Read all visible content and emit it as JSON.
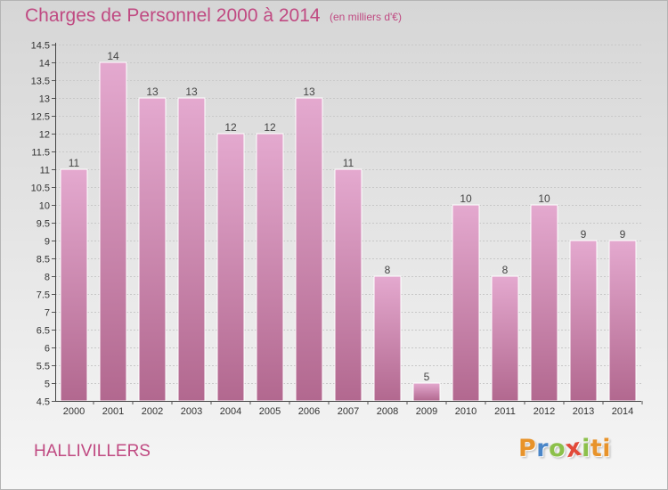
{
  "colors": {
    "accent": "#c04a82",
    "bar_top": "#e4a9cf",
    "bar_bottom": "#b2688f",
    "logo": [
      "#e8932a",
      "#4a86c8",
      "#8cc04a",
      "#e24a3a",
      "#8cc04a",
      "#e8932a"
    ]
  },
  "header": {
    "title": "Charges de Personnel 2000 à 2014",
    "subtitle": "(en milliers d'€)"
  },
  "footer": {
    "commune": "HALLIVILLERS",
    "logo_letters": [
      "P",
      "r",
      "o",
      "x",
      "i",
      "t",
      "i"
    ]
  },
  "chart_data": {
    "type": "bar",
    "title": "Charges de Personnel 2000 à 2014",
    "subtitle": "(en milliers d'€)",
    "categories": [
      "2000",
      "2001",
      "2002",
      "2003",
      "2004",
      "2005",
      "2006",
      "2007",
      "2008",
      "2009",
      "2010",
      "2011",
      "2012",
      "2013",
      "2014"
    ],
    "values": [
      11,
      14,
      13,
      13,
      12,
      12,
      13,
      11,
      8,
      5,
      10,
      8,
      10,
      9,
      9
    ],
    "value_labels": [
      "11",
      "14",
      "13",
      "13",
      "12",
      "12",
      "13",
      "11",
      "8",
      "5",
      "10",
      "8",
      "10",
      "9",
      "9"
    ],
    "ylim": [
      4.5,
      14.5
    ],
    "yticks": [
      4.5,
      5,
      5.5,
      6,
      6.5,
      7,
      7.5,
      8,
      8.5,
      9,
      9.5,
      10,
      10.5,
      11,
      11.5,
      12,
      12.5,
      13,
      13.5,
      14,
      14.5
    ],
    "ytick_labels": [
      "4.5",
      "5",
      "5.5",
      "6",
      "6.5",
      "7",
      "7.5",
      "8",
      "8.5",
      "9",
      "9.5",
      "10",
      "10.5",
      "11",
      "11.5",
      "12",
      "12.5",
      "13",
      "13.5",
      "14",
      "14.5"
    ],
    "grid": true,
    "legend": "none"
  }
}
